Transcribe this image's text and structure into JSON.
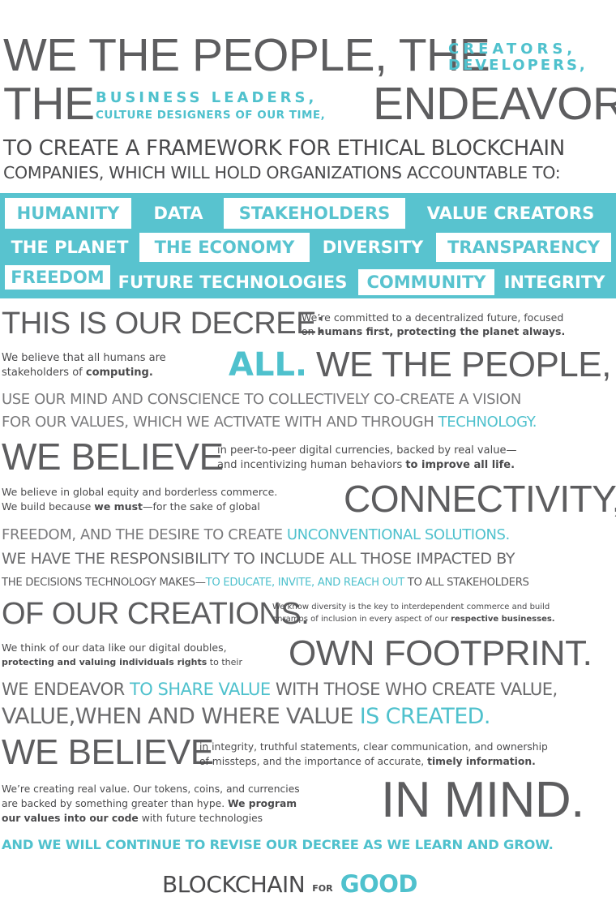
{
  "header": {
    "line1": "WE THE PEOPLE, THE",
    "creators": "CREATORS,",
    "developers": "DEVELOPERS,",
    "the": "THE",
    "business_leaders": "BUSINESS LEADERS,",
    "culture_designers": "CULTURE DESIGNERS OF OUR TIME,",
    "endeavor": "ENDEAVOR",
    "framework": "TO CREATE A FRAMEWORK FOR ETHICAL BLOCKCHAIN",
    "companies": "COMPANIES, WHICH WILL HOLD ORGANIZATIONS ACCOUNTABLE TO:"
  },
  "values": {
    "row1": [
      "HUMANITY",
      "DATA",
      "STAKEHOLDERS",
      "VALUE CREATORS"
    ],
    "row2": [
      "THE PLANET",
      "THE ECONOMY",
      "DIVERSITY",
      "TRANSPARENCY"
    ],
    "row3": [
      "FREEDOM",
      "FUTURE TECHNOLOGIES",
      "COMMUNITY",
      "INTEGRITY"
    ]
  },
  "decree": {
    "heading": "THIS IS OUR DECREE:",
    "committed_1": "We’re committed to a decentralized future, focused",
    "committed_2_pre": "on ",
    "committed_2_bold": "humans first, protecting the planet always.",
    "believe_humans_1": "We believe that all humans are",
    "believe_humans_2_pre": "stakeholders of ",
    "believe_humans_2_bold": "computing.",
    "all": "ALL.",
    "we_the_people": "WE THE PEOPLE,",
    "mind_conscience": "USE OUR MIND AND CONSCIENCE TO COLLECTIVELY CO-CREATE A VISION",
    "values_activate": "FOR OUR VALUES, WHICH WE ACTIVATE WITH AND THROUGH ",
    "technology": "TECHNOLOGY.",
    "we_believe_1": "WE BELIEVE",
    "p2p_1": "in peer-to-peer digital currencies, backed by real value—",
    "p2p_2_pre": "and incentivizing human behaviors ",
    "p2p_2_bold": "to improve all life.",
    "equity_1": "We believe in global equity and borderless commerce.",
    "equity_2_pre": "We build because ",
    "equity_2_bold": "we must",
    "equity_2_post": "—for the sake of global",
    "connectivity": "CONNECTIVITY,",
    "freedom_desire": "FREEDOM, AND THE DESIRE TO CREATE ",
    "unconventional": "UNCONVENTIONAL SOLUTIONS.",
    "responsibility": "WE HAVE THE RESPONSIBILITY TO INCLUDE ALL THOSE IMPACTED BY",
    "decisions_pre": "THE DECISIONS TECHNOLOGY MAKES—",
    "decisions_teal": "TO EDUCATE, INVITE, AND REACH OUT",
    "decisions_post": " TO ALL STAKEHOLDERS",
    "of_our_creations": "OF OUR CREATIONS.",
    "diversity_1": "We know diversity is the key to interdependent commerce and build",
    "diversity_2_pre": "onramps of inclusion in every aspect of our ",
    "diversity_2_bold": "respective businesses.",
    "data_doubles_1": "We think of our data like our digital doubles,",
    "data_doubles_2_bold": "protecting and valuing individuals rights",
    "data_doubles_2_post": " to their",
    "own_footprint": "OWN FOOTPRINT.",
    "endeavor_share_pre": "WE ENDEAVOR ",
    "endeavor_share_teal": "TO SHARE VALUE",
    "endeavor_share_post": " WITH THOSE WHO CREATE VALUE,",
    "value_when": "VALUE,WHEN AND WHERE VALUE ",
    "is_created": "IS CREATED.",
    "we_believe_2": "WE BELIEVE",
    "integrity_1": "in integrity, truthful statements, clear communication, and ownership",
    "integrity_2_pre": "of missteps, and the importance of accurate, ",
    "integrity_2_bold": "timely information.",
    "real_value_1": "We’re creating real value. Our tokens, coins, and currencies",
    "real_value_2_pre": "are backed by something greater than hype. ",
    "real_value_2_bold": "We program",
    "real_value_3_bold": "our values into our code",
    "real_value_3_post": " with future technologies",
    "in_mind": "IN MIND.",
    "continue": "AND WE WILL CONTINUE TO REVISE OUR DECREE AS WE LEARN AND GROW."
  },
  "logo": {
    "blockchain": "BLOCKCHAIN",
    "for": "FOR",
    "good": "GOOD"
  },
  "colors": {
    "teal": "#58c3cf",
    "gray": "#5d5d5f"
  }
}
